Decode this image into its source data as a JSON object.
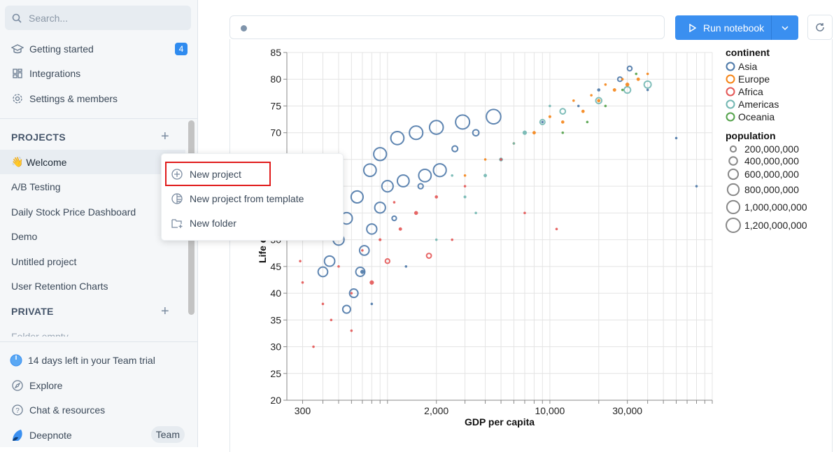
{
  "sidebar": {
    "search_placeholder": "Search...",
    "nav": [
      {
        "label": "Getting started",
        "icon": "graduation-cap-icon",
        "badge": "4"
      },
      {
        "label": "Integrations",
        "icon": "grid-icon"
      },
      {
        "label": "Settings & members",
        "icon": "gear-icon"
      }
    ],
    "projects_header": "PROJECTS",
    "projects": [
      {
        "label": "Welcome",
        "emoji": "👋"
      },
      {
        "label": "A/B Testing"
      },
      {
        "label": "Daily Stock Price Dashboard"
      },
      {
        "label": "Demo"
      },
      {
        "label": "Untitled project"
      },
      {
        "label": "User Retention Charts"
      }
    ],
    "private_header": "PRIVATE",
    "private_empty": "Folder empty",
    "footer": [
      {
        "label": "14 days left in your Team trial",
        "icon": "clock-icon"
      },
      {
        "label": "Explore",
        "icon": "compass-icon"
      },
      {
        "label": "Chat & resources",
        "icon": "help-circle-icon"
      },
      {
        "label": "Deepnote",
        "icon": "deepnote-logo-icon"
      }
    ],
    "plan_badge": "Team"
  },
  "context_menu": {
    "items": [
      {
        "label": "New project",
        "icon": "plus-circle-icon"
      },
      {
        "label": "New project from template",
        "icon": "template-icon"
      },
      {
        "label": "New folder",
        "icon": "folder-plus-icon"
      }
    ]
  },
  "toolbar": {
    "run_label": "Run notebook"
  },
  "colors": {
    "accent": "#3a8ff0",
    "Asia": "#4c78a8",
    "Europe": "#f58518",
    "Africa": "#e45756",
    "Americas": "#72b7b2",
    "Oceania": "#54a24b"
  },
  "chart_data": {
    "type": "scatter",
    "xlabel": "GDP per capita",
    "ylabel": "Life expectancy",
    "x_scale": "log",
    "xlim": [
      240,
      100000
    ],
    "ylim": [
      20,
      85
    ],
    "x_ticks": [
      "300",
      "2,000",
      "10,000",
      "30,000"
    ],
    "x_tick_values": [
      300,
      2000,
      10000,
      30000
    ],
    "y_ticks": [
      20,
      25,
      30,
      35,
      40,
      45,
      50,
      55,
      60,
      65,
      70,
      75,
      80,
      85
    ],
    "grid": true,
    "legend_color_title": "continent",
    "continents": [
      "Asia",
      "Europe",
      "Africa",
      "Americas",
      "Oceania"
    ],
    "legend_size_title": "population",
    "size_legend": [
      {
        "label": "200,000,000",
        "value": 200000000
      },
      {
        "label": "400,000,000",
        "value": 400000000
      },
      {
        "label": "600,000,000",
        "value": 600000000
      },
      {
        "label": "800,000,000",
        "value": 800000000
      },
      {
        "label": "1,000,000,000",
        "value": 1000000000
      },
      {
        "label": "1,200,000,000",
        "value": 1200000000
      }
    ],
    "point_fields": [
      "gdp_per_capita",
      "life_expectancy",
      "population_millions",
      "continent"
    ],
    "points": [
      [
        400,
        44,
        560,
        "Asia"
      ],
      [
        440,
        46,
        650,
        "Asia"
      ],
      [
        500,
        50,
        720,
        "Asia"
      ],
      [
        560,
        54,
        800,
        "Asia"
      ],
      [
        650,
        58,
        880,
        "Asia"
      ],
      [
        780,
        63,
        950,
        "Asia"
      ],
      [
        900,
        66,
        1000,
        "Asia"
      ],
      [
        1150,
        69,
        1050,
        "Asia"
      ],
      [
        1500,
        70,
        1100,
        "Asia"
      ],
      [
        2000,
        71,
        1150,
        "Asia"
      ],
      [
        2900,
        72,
        1200,
        "Asia"
      ],
      [
        4500,
        73,
        1280,
        "Asia"
      ],
      [
        560,
        37,
        370,
        "Asia"
      ],
      [
        620,
        40,
        440,
        "Asia"
      ],
      [
        680,
        44,
        500,
        "Asia"
      ],
      [
        720,
        48,
        560,
        "Asia"
      ],
      [
        800,
        52,
        620,
        "Asia"
      ],
      [
        900,
        56,
        700,
        "Asia"
      ],
      [
        1000,
        60,
        780,
        "Asia"
      ],
      [
        1250,
        61,
        850,
        "Asia"
      ],
      [
        1700,
        62,
        950,
        "Asia"
      ],
      [
        2100,
        63,
        1000,
        "Asia"
      ],
      [
        700,
        44,
        90,
        "Asia"
      ],
      [
        1100,
        54,
        120,
        "Asia"
      ],
      [
        1600,
        60,
        160,
        "Asia"
      ],
      [
        2600,
        67,
        200,
        "Asia"
      ],
      [
        3500,
        70,
        230,
        "Asia"
      ],
      [
        31000,
        82,
        127,
        "Asia"
      ],
      [
        27000,
        80,
        120,
        "Asia"
      ],
      [
        20000,
        78,
        50,
        "Asia"
      ],
      [
        15000,
        75,
        20,
        "Asia"
      ],
      [
        9000,
        72,
        30,
        "Asia"
      ],
      [
        40000,
        78,
        4,
        "Asia"
      ],
      [
        60000,
        69,
        2,
        "Asia"
      ],
      [
        80000,
        60,
        1,
        "Asia"
      ],
      [
        1300,
        45,
        20,
        "Asia"
      ],
      [
        800,
        38,
        25,
        "Asia"
      ],
      [
        5000,
        65,
        10,
        "Asia"
      ],
      [
        8000,
        70,
        60,
        "Europe"
      ],
      [
        12000,
        72,
        50,
        "Europe"
      ],
      [
        16000,
        74,
        55,
        "Europe"
      ],
      [
        20000,
        76,
        60,
        "Europe"
      ],
      [
        25000,
        78,
        60,
        "Europe"
      ],
      [
        30000,
        79,
        80,
        "Europe"
      ],
      [
        35000,
        80,
        60,
        "Europe"
      ],
      [
        6000,
        68,
        30,
        "Europe"
      ],
      [
        4000,
        65,
        20,
        "Europe"
      ],
      [
        10000,
        73,
        40,
        "Europe"
      ],
      [
        18000,
        77,
        10,
        "Europe"
      ],
      [
        28000,
        80,
        8,
        "Europe"
      ],
      [
        40000,
        81,
        5,
        "Europe"
      ],
      [
        3000,
        62,
        15,
        "Europe"
      ],
      [
        14000,
        76,
        20,
        "Europe"
      ],
      [
        22000,
        79,
        10,
        "Europe"
      ],
      [
        300,
        42,
        10,
        "Africa"
      ],
      [
        400,
        38,
        15,
        "Africa"
      ],
      [
        500,
        45,
        20,
        "Africa"
      ],
      [
        600,
        40,
        25,
        "Africa"
      ],
      [
        700,
        48,
        30,
        "Africa"
      ],
      [
        900,
        50,
        40,
        "Africa"
      ],
      [
        1200,
        52,
        60,
        "Africa"
      ],
      [
        1500,
        55,
        80,
        "Africa"
      ],
      [
        2000,
        58,
        50,
        "Africa"
      ],
      [
        3000,
        60,
        20,
        "Africa"
      ],
      [
        5000,
        65,
        10,
        "Africa"
      ],
      [
        800,
        42,
        100,
        "Africa"
      ],
      [
        1000,
        46,
        120,
        "Africa"
      ],
      [
        1800,
        47,
        140,
        "Africa"
      ],
      [
        450,
        35,
        8,
        "Africa"
      ],
      [
        350,
        30,
        5,
        "Africa"
      ],
      [
        600,
        33,
        6,
        "Africa"
      ],
      [
        2500,
        50,
        10,
        "Africa"
      ],
      [
        7000,
        55,
        5,
        "Africa"
      ],
      [
        11000,
        52,
        3,
        "Africa"
      ],
      [
        290,
        46,
        12,
        "Africa"
      ],
      [
        1100,
        57,
        30,
        "Africa"
      ],
      [
        2000,
        50,
        20,
        "Americas"
      ],
      [
        3000,
        58,
        40,
        "Americas"
      ],
      [
        4000,
        62,
        60,
        "Americas"
      ],
      [
        5000,
        65,
        80,
        "Americas"
      ],
      [
        7000,
        70,
        100,
        "Americas"
      ],
      [
        9000,
        72,
        150,
        "Americas"
      ],
      [
        12000,
        74,
        180,
        "Americas"
      ],
      [
        20000,
        76,
        220,
        "Americas"
      ],
      [
        30000,
        78,
        260,
        "Americas"
      ],
      [
        40000,
        79,
        300,
        "Americas"
      ],
      [
        3500,
        55,
        15,
        "Americas"
      ],
      [
        6000,
        68,
        20,
        "Americas"
      ],
      [
        10000,
        75,
        30,
        "Americas"
      ],
      [
        2500,
        62,
        10,
        "Americas"
      ],
      [
        12000,
        70,
        10,
        "Oceania"
      ],
      [
        17000,
        72,
        12,
        "Oceania"
      ],
      [
        22000,
        75,
        15,
        "Oceania"
      ],
      [
        28000,
        78,
        18,
        "Oceania"
      ],
      [
        34000,
        81,
        20,
        "Oceania"
      ]
    ]
  }
}
